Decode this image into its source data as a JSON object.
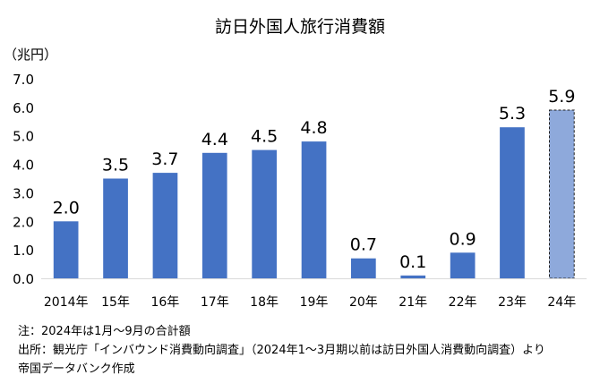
{
  "chart_data": {
    "type": "bar",
    "title": "訪日外国人旅行消費額",
    "ylabel": "（兆円）",
    "xlabel": "",
    "ylim": [
      0,
      7
    ],
    "yticks": [
      "0.0",
      "1.0",
      "2.0",
      "3.0",
      "4.0",
      "5.0",
      "6.0",
      "7.0"
    ],
    "grid": false,
    "categories": [
      "2014年",
      "15年",
      "16年",
      "17年",
      "18年",
      "19年",
      "20年",
      "21年",
      "22年",
      "23年",
      "24年"
    ],
    "values": [
      2.0,
      3.5,
      3.7,
      4.4,
      4.5,
      4.8,
      0.7,
      0.1,
      0.9,
      5.3,
      5.9
    ],
    "value_labels": [
      "2.0",
      "3.5",
      "3.7",
      "4.4",
      "4.5",
      "4.8",
      "0.7",
      "0.1",
      "0.9",
      "5.3",
      "5.9"
    ],
    "highlight": {
      "index": 10,
      "style": "dashed-outline"
    },
    "colors": {
      "bar": "#4472C4",
      "bar_highlight": "#8EA9DB",
      "axis": "#D9D9D9"
    }
  },
  "notes": {
    "note": "注：2024年は1月～9月の合計額",
    "source": "出所：観光庁「インバウンド消費動向調査」（2024年1～3月期以前は訪日外国人消費動向調査）より",
    "credit": "帝国データバンク作成"
  }
}
